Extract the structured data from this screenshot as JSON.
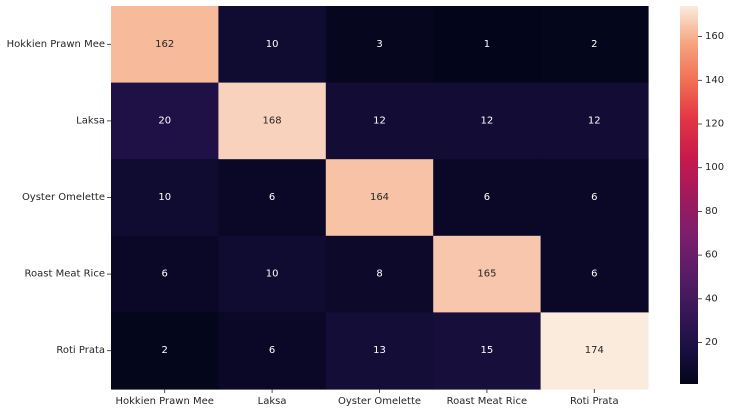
{
  "chart_data": {
    "type": "heatmap",
    "title": "",
    "xlabel": "",
    "ylabel": "",
    "row_labels": [
      "Hokkien Prawn Mee",
      "Laksa",
      "Oyster Omelette",
      "Roast Meat Rice",
      "Roti Prata"
    ],
    "col_labels": [
      "Hokkien Prawn Mee",
      "Laksa",
      "Oyster Omelette",
      "Roast Meat Rice",
      "Roti Prata"
    ],
    "values": [
      [
        162,
        10,
        3,
        1,
        2
      ],
      [
        20,
        168,
        12,
        12,
        12
      ],
      [
        10,
        6,
        164,
        6,
        6
      ],
      [
        6,
        10,
        8,
        165,
        6
      ],
      [
        2,
        6,
        13,
        15,
        174
      ]
    ],
    "colormap": "rocket",
    "colorbar": {
      "vmin": 1,
      "vmax": 174,
      "ticks": [
        20,
        40,
        60,
        80,
        100,
        120,
        140,
        160
      ]
    },
    "grid": false,
    "legend": "colorbar-right"
  }
}
